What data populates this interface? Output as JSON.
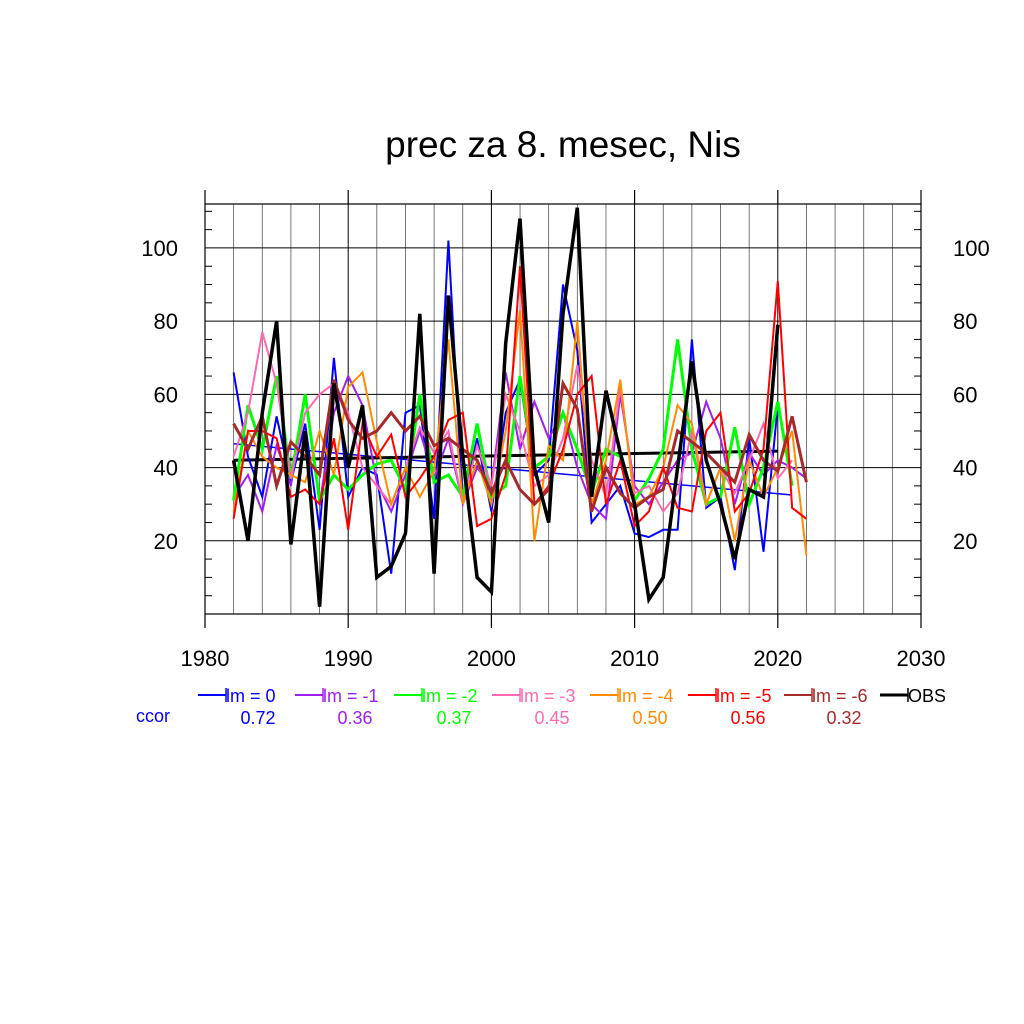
{
  "chart_data": {
    "type": "line",
    "title": "prec za 8. mesec, Nis",
    "xlabel": "",
    "ylabel": "",
    "xlim": [
      1980,
      2030
    ],
    "ylim": [
      0,
      112
    ],
    "x_ticks": [
      "1980",
      "1990",
      "2000",
      "2010",
      "2020",
      "2030"
    ],
    "y_ticks": [
      "20",
      "40",
      "60",
      "80",
      "100"
    ],
    "grid": true,
    "legend_position": "bottom",
    "ccor_label": "ccor",
    "x": [
      1982,
      1983,
      1984,
      1985,
      1986,
      1987,
      1988,
      1989,
      1990,
      1991,
      1992,
      1993,
      1994,
      1995,
      1996,
      1997,
      1998,
      1999,
      2000,
      2001,
      2002,
      2003,
      2004,
      2005,
      2006,
      2007,
      2008,
      2009,
      2010,
      2011,
      2012,
      2013,
      2014,
      2015,
      2016,
      2017,
      2018,
      2019,
      2020,
      2021,
      2022
    ],
    "series": [
      {
        "name": "lm = 0",
        "color": "#0000ff",
        "ccor": "0.72",
        "width": 2,
        "values": [
          66,
          43,
          32,
          54,
          36,
          52,
          23,
          70,
          32,
          40,
          38,
          11,
          55,
          57,
          26,
          102,
          30,
          48,
          28,
          55,
          64,
          38,
          42,
          90,
          72,
          25,
          30,
          35,
          22,
          21,
          23,
          23,
          75,
          29,
          32,
          12,
          48,
          17,
          57,
          null,
          null
        ],
        "trend": [
          [
            1982,
            46.5
          ],
          [
            2021,
            32.5
          ]
        ]
      },
      {
        "name": "lm = -1",
        "color": "#a020f0",
        "ccor": "0.36",
        "width": 2,
        "values": [
          32,
          38,
          28,
          46,
          35,
          60,
          30,
          55,
          65,
          57,
          36,
          28,
          38,
          50,
          37,
          48,
          30,
          40,
          35,
          66,
          45,
          58,
          48,
          55,
          40,
          30,
          26,
          60,
          35,
          30,
          36,
          42,
          44,
          58,
          48,
          30,
          44,
          38,
          42,
          40,
          37
        ]
      },
      {
        "name": "lm = -2",
        "color": "#00ff00",
        "ccor": "0.37",
        "width": 3,
        "values": [
          31,
          57,
          45,
          65,
          37,
          60,
          31,
          38,
          34,
          38,
          41,
          42,
          34,
          60,
          36,
          38,
          32,
          52,
          32,
          35,
          65,
          40,
          43,
          55,
          45,
          33,
          45,
          43,
          31,
          37,
          45,
          75,
          45,
          30,
          32,
          51,
          30,
          40,
          58,
          35,
          null
        ]
      },
      {
        "name": "lm = -3",
        "color": "#ff69b4",
        "ccor": "0.45",
        "width": 2,
        "values": [
          43,
          55,
          77,
          63,
          37,
          55,
          60,
          63,
          55,
          40,
          35,
          30,
          40,
          51,
          44,
          50,
          30,
          46,
          35,
          60,
          50,
          35,
          38,
          48,
          68,
          42,
          32,
          62,
          33,
          35,
          28,
          33,
          50,
          30,
          40,
          33,
          42,
          52,
          37,
          42,
          null
        ]
      },
      {
        "name": "lm = -4",
        "color": "#ff8c00",
        "ccor": "0.50",
        "width": 2,
        "values": [
          28,
          50,
          43,
          40,
          38,
          36,
          50,
          38,
          62,
          66,
          47,
          30,
          40,
          32,
          39,
          75,
          30,
          42,
          30,
          50,
          83,
          20,
          46,
          42,
          80,
          30,
          42,
          64,
          30,
          32,
          40,
          57,
          52,
          30,
          40,
          20,
          42,
          32,
          40,
          50,
          16
        ]
      },
      {
        "name": "lm = -5",
        "color": "#ff0000",
        "ccor": "0.56",
        "width": 2,
        "values": [
          26,
          50,
          50,
          48,
          32,
          34,
          30,
          48,
          23,
          52,
          43,
          49,
          32,
          37,
          43,
          53,
          55,
          24,
          26,
          38,
          95,
          30,
          35,
          45,
          60,
          65,
          30,
          42,
          24,
          28,
          40,
          29,
          28,
          50,
          55,
          28,
          33,
          45,
          91,
          29,
          26
        ]
      },
      {
        "name": "lm = -6",
        "color": "#a52a2a",
        "ccor": "0.32",
        "width": 3,
        "values": [
          52,
          45,
          54,
          35,
          47,
          43,
          38,
          64,
          53,
          48,
          50,
          55,
          50,
          54,
          46,
          48,
          45,
          42,
          33,
          42,
          34,
          30,
          34,
          63,
          56,
          28,
          40,
          33,
          29,
          32,
          34,
          50,
          47,
          44,
          40,
          36,
          49,
          42,
          39,
          54,
          36
        ]
      },
      {
        "name": "OBS",
        "color": "#000000",
        "ccor": "",
        "width": 3.5,
        "values": [
          42,
          20,
          55,
          80,
          19,
          50,
          2,
          63,
          40,
          57,
          10,
          13,
          22,
          82,
          11,
          87,
          43,
          10,
          6,
          74,
          108,
          40,
          25,
          82,
          111,
          32,
          61,
          44,
          30,
          4,
          10,
          40,
          69,
          42,
          30,
          15,
          34,
          32,
          79,
          null,
          null
        ],
        "trend": [
          [
            1982,
            42
          ],
          [
            2020,
            44.5
          ]
        ]
      }
    ]
  }
}
